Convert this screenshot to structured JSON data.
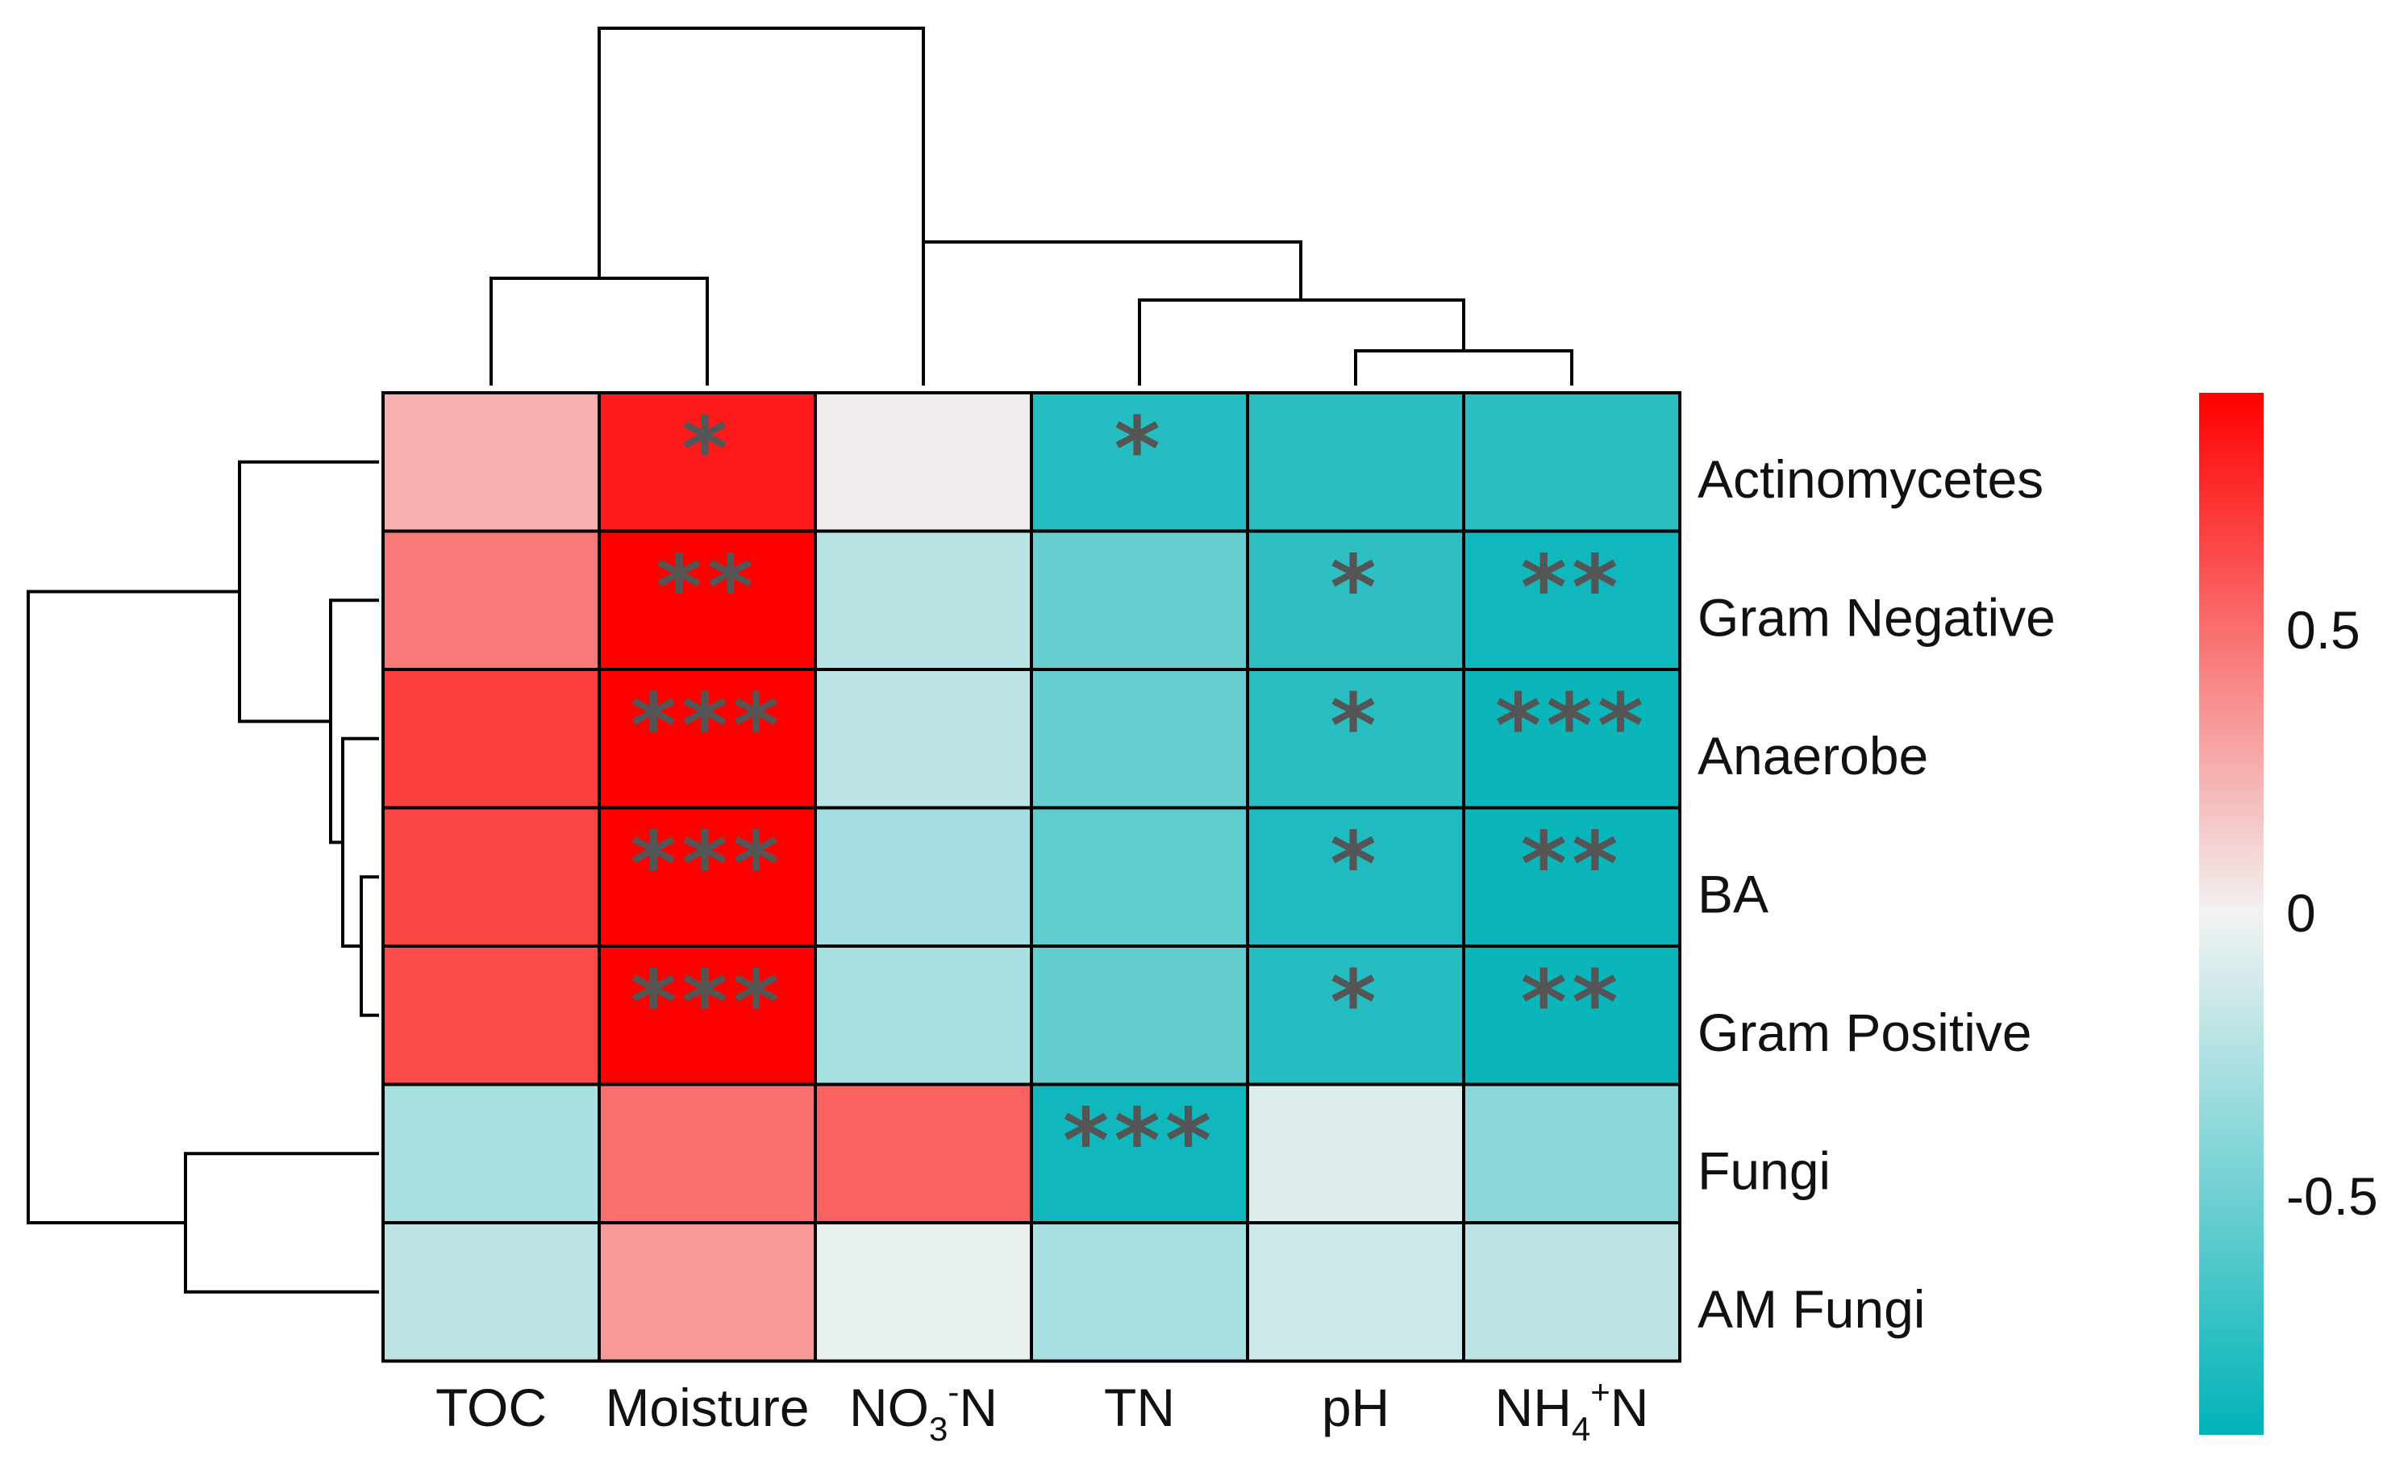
{
  "chart_data": {
    "type": "heatmap",
    "title": "",
    "columns": [
      "TOC",
      "Moisture",
      "NO3-N",
      "TN",
      "pH",
      "NH4+N"
    ],
    "rows": [
      "Actinomycetes",
      "Gram Negative",
      "Anaerobe",
      "BA",
      "Gram Positive",
      "Fungi",
      "AM Fungi"
    ],
    "values": [
      [
        0.25,
        0.82,
        0.02,
        -0.78,
        -0.76,
        -0.76
      ],
      [
        0.46,
        0.92,
        -0.22,
        -0.52,
        -0.74,
        -0.86
      ],
      [
        0.68,
        0.94,
        -0.2,
        -0.52,
        -0.76,
        -0.88
      ],
      [
        0.66,
        0.95,
        -0.3,
        -0.56,
        -0.8,
        -0.88
      ],
      [
        0.64,
        0.95,
        -0.28,
        -0.54,
        -0.78,
        -0.88
      ],
      [
        -0.28,
        0.5,
        0.55,
        -0.86,
        -0.08,
        -0.4
      ],
      [
        -0.2,
        0.34,
        -0.04,
        -0.28,
        -0.14,
        -0.2
      ]
    ],
    "significance": [
      [
        "",
        "*",
        "",
        "*",
        "",
        ""
      ],
      [
        "",
        "**",
        "",
        "",
        "*",
        "**"
      ],
      [
        "",
        "***",
        "",
        "",
        "*",
        "***"
      ],
      [
        "",
        "***",
        "",
        "",
        "*",
        "**"
      ],
      [
        "",
        "***",
        "",
        "",
        "*",
        "**"
      ],
      [
        "",
        "",
        "",
        "***",
        "",
        ""
      ],
      [
        "",
        "",
        "",
        "",
        "",
        ""
      ]
    ],
    "colorbar": {
      "ticks": [
        0.5,
        0,
        -0.5
      ],
      "tick_labels": [
        "0.5",
        "0",
        "-0.5"
      ],
      "range": [
        -0.92,
        0.92
      ],
      "low_color": "#00B3B8",
      "mid_color": "#F2F2F2",
      "high_color": "#FF0000"
    },
    "column_dendrogram_order": [
      "TOC",
      "Moisture",
      "NO3-N",
      "TN",
      "pH",
      "NH4+N"
    ],
    "row_dendrogram_order": [
      "Actinomycetes",
      "Gram Negative",
      "Anaerobe",
      "BA",
      "Gram Positive",
      "Fungi",
      "AM Fungi"
    ]
  }
}
